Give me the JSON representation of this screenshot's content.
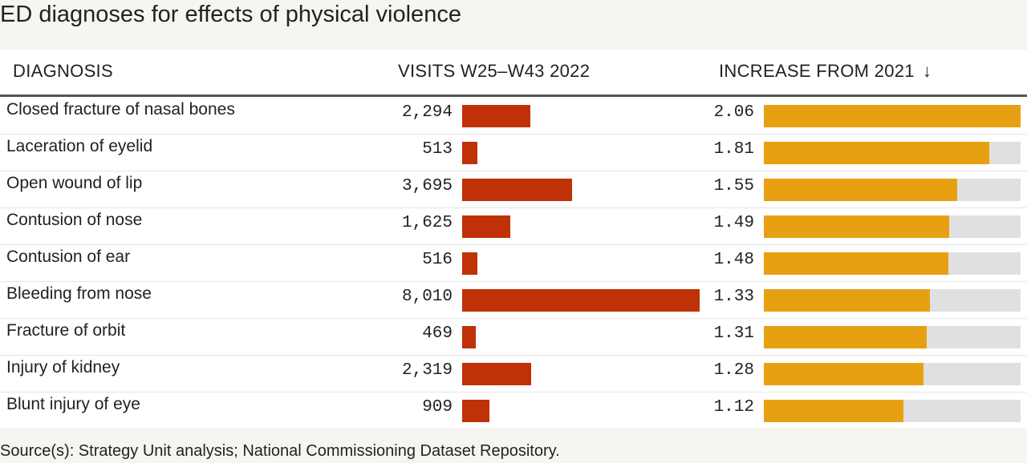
{
  "title": "ED diagnoses for effects of physical violence",
  "source": "Source(s): Strategy Unit analysis; National Commissioning Dataset Repository.",
  "colors": {
    "visits_bar": "#bf3107",
    "increase_bar": "#e8a013",
    "track": "#e0e0e0"
  },
  "icons": {
    "sort": "arrow-down-icon"
  },
  "chart_data": {
    "type": "table",
    "title": "ED diagnoses for effects of physical violence",
    "columns": {
      "diagnosis": "DIAGNOSIS",
      "visits": "VISITS W25–W43 2022",
      "increase": "INCREASE FROM 2021",
      "sort_arrow": "↓"
    },
    "visits_max": 8010,
    "increase_max": 2.06,
    "rows": [
      {
        "diagnosis": "Closed fracture of nasal bones",
        "visits": 2294,
        "visits_label": "2,294",
        "increase": 2.06,
        "increase_label": "2.06"
      },
      {
        "diagnosis": "Laceration of eyelid",
        "visits": 513,
        "visits_label": "513",
        "increase": 1.81,
        "increase_label": "1.81"
      },
      {
        "diagnosis": "Open wound of lip",
        "visits": 3695,
        "visits_label": "3,695",
        "increase": 1.55,
        "increase_label": "1.55"
      },
      {
        "diagnosis": "Contusion of nose",
        "visits": 1625,
        "visits_label": "1,625",
        "increase": 1.49,
        "increase_label": "1.49"
      },
      {
        "diagnosis": "Contusion of ear",
        "visits": 516,
        "visits_label": "516",
        "increase": 1.48,
        "increase_label": "1.48"
      },
      {
        "diagnosis": "Bleeding from nose",
        "visits": 8010,
        "visits_label": "8,010",
        "increase": 1.33,
        "increase_label": "1.33"
      },
      {
        "diagnosis": "Fracture of orbit",
        "visits": 469,
        "visits_label": "469",
        "increase": 1.31,
        "increase_label": "1.31"
      },
      {
        "diagnosis": "Injury of kidney",
        "visits": 2319,
        "visits_label": "2,319",
        "increase": 1.28,
        "increase_label": "1.28"
      },
      {
        "diagnosis": "Blunt injury of eye",
        "visits": 909,
        "visits_label": "909",
        "increase": 1.12,
        "increase_label": "1.12"
      }
    ]
  }
}
